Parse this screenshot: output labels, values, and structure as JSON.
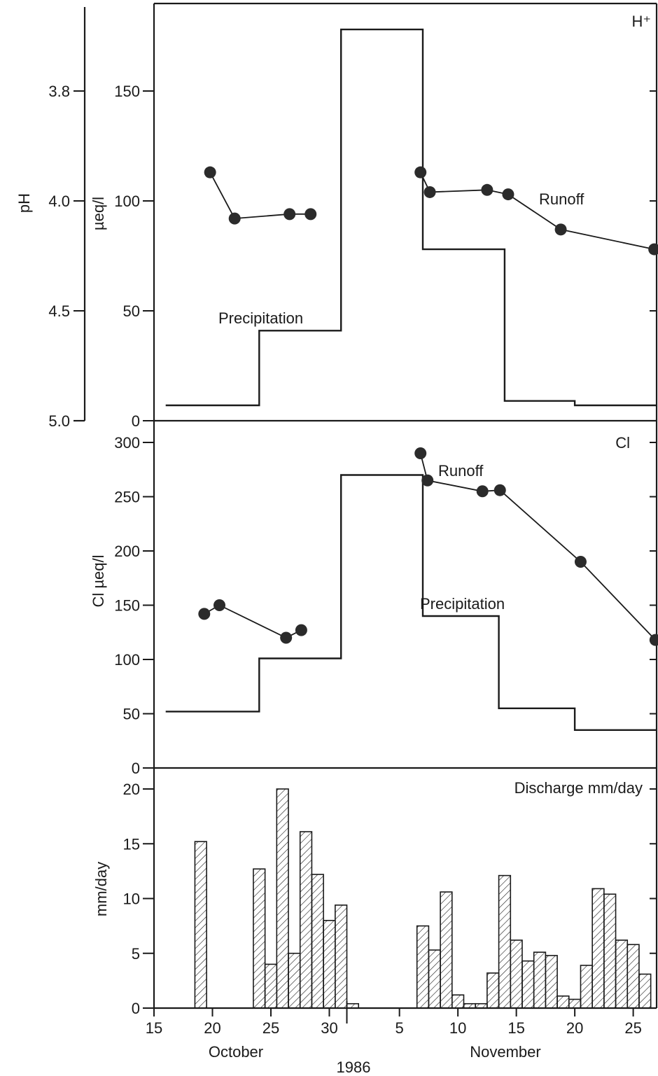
{
  "chart_data": [
    {
      "id": "hplus",
      "type": "line",
      "title": "H⁺",
      "ylabel": "µeq/l",
      "ylabel2": "pH",
      "ylim": [
        0,
        180
      ],
      "yticks": [
        0,
        50,
        100,
        150
      ],
      "ph_ticks": [
        {
          "label": "3.8",
          "value": 150
        },
        {
          "label": "4.0",
          "value": 100
        },
        {
          "label": "4.5",
          "value": 50
        },
        {
          "label": "5.0",
          "value": 0
        }
      ],
      "xlim": [
        15,
        58
      ],
      "precipitation": {
        "name": "Precipitation",
        "steps": [
          [
            16,
            24,
            7
          ],
          [
            24,
            31,
            41
          ],
          [
            31,
            38,
            178
          ],
          [
            38,
            45,
            78
          ],
          [
            45,
            51,
            9
          ],
          [
            51,
            58,
            7
          ]
        ]
      },
      "runoff": {
        "name": "Runoff",
        "segments": [
          [
            [
              19.8,
              113
            ],
            [
              21.9,
              92
            ],
            [
              26.6,
              94
            ],
            [
              28.4,
              94
            ]
          ],
          [
            [
              37.8,
              113
            ],
            [
              38.6,
              104
            ],
            [
              43.5,
              105
            ],
            [
              45.3,
              103
            ],
            [
              49.8,
              87
            ],
            [
              57.8,
              78
            ]
          ]
        ]
      }
    },
    {
      "id": "cl",
      "type": "line",
      "title": "Cl",
      "ylabel": "Cl µeq/l",
      "ylim": [
        0,
        310
      ],
      "yticks": [
        0,
        50,
        100,
        150,
        200,
        250,
        300
      ],
      "xlim": [
        15,
        58
      ],
      "precipitation": {
        "name": "Precipitation",
        "steps": [
          [
            16,
            24,
            52
          ],
          [
            24,
            31,
            101
          ],
          [
            31,
            38,
            270
          ],
          [
            38,
            44.5,
            140
          ],
          [
            44.5,
            51,
            55
          ],
          [
            51,
            58,
            35
          ]
        ]
      },
      "runoff": {
        "name": "Runoff",
        "segments": [
          [
            [
              19.3,
              142
            ],
            [
              20.6,
              150
            ],
            [
              26.3,
              120
            ],
            [
              27.6,
              127
            ]
          ],
          [
            [
              37.8,
              290
            ],
            [
              38.4,
              265
            ],
            [
              43.1,
              255
            ],
            [
              44.6,
              256
            ],
            [
              51.5,
              190
            ],
            [
              57.9,
              118
            ]
          ]
        ]
      }
    },
    {
      "id": "discharge",
      "type": "bar",
      "title": "Discharge mm/day",
      "ylabel": "mm/day",
      "ylim": [
        0,
        21
      ],
      "yticks": [
        0,
        5,
        10,
        15,
        20
      ],
      "xlim": [
        15,
        58
      ],
      "xticks": [
        {
          "label": "15",
          "value": 15
        },
        {
          "label": "20",
          "value": 20
        },
        {
          "label": "25",
          "value": 25
        },
        {
          "label": "30",
          "value": 30
        },
        {
          "label": "5",
          "value": 36
        },
        {
          "label": "10",
          "value": 41
        },
        {
          "label": "15",
          "value": 46
        },
        {
          "label": "20",
          "value": 51
        },
        {
          "label": "25",
          "value": 56
        }
      ],
      "month_labels": [
        "October",
        "November"
      ],
      "year_label": "1986",
      "bars": [
        {
          "day": 19,
          "value": 15.2
        },
        {
          "day": 24,
          "value": 12.7
        },
        {
          "day": 25,
          "value": 4.0
        },
        {
          "day": 26,
          "value": 20.0
        },
        {
          "day": 27,
          "value": 5.0
        },
        {
          "day": 28,
          "value": 16.1
        },
        {
          "day": 29,
          "value": 12.2
        },
        {
          "day": 30,
          "value": 8.0
        },
        {
          "day": 31,
          "value": 9.4
        },
        {
          "day": 32,
          "value": 0.4
        },
        {
          "day": 38,
          "value": 7.5
        },
        {
          "day": 39,
          "value": 5.3
        },
        {
          "day": 40,
          "value": 10.6
        },
        {
          "day": 41,
          "value": 1.2
        },
        {
          "day": 42,
          "value": 0.4
        },
        {
          "day": 43,
          "value": 0.4
        },
        {
          "day": 44,
          "value": 3.2
        },
        {
          "day": 45,
          "value": 12.1
        },
        {
          "day": 46,
          "value": 6.2
        },
        {
          "day": 47,
          "value": 4.3
        },
        {
          "day": 48,
          "value": 5.1
        },
        {
          "day": 49,
          "value": 4.8
        },
        {
          "day": 50,
          "value": 1.1
        },
        {
          "day": 51,
          "value": 0.8
        },
        {
          "day": 52,
          "value": 3.9
        },
        {
          "day": 53,
          "value": 10.9
        },
        {
          "day": 54,
          "value": 10.4
        },
        {
          "day": 55,
          "value": 6.2
        },
        {
          "day": 56,
          "value": 5.8
        },
        {
          "day": 57,
          "value": 3.1
        }
      ]
    }
  ]
}
